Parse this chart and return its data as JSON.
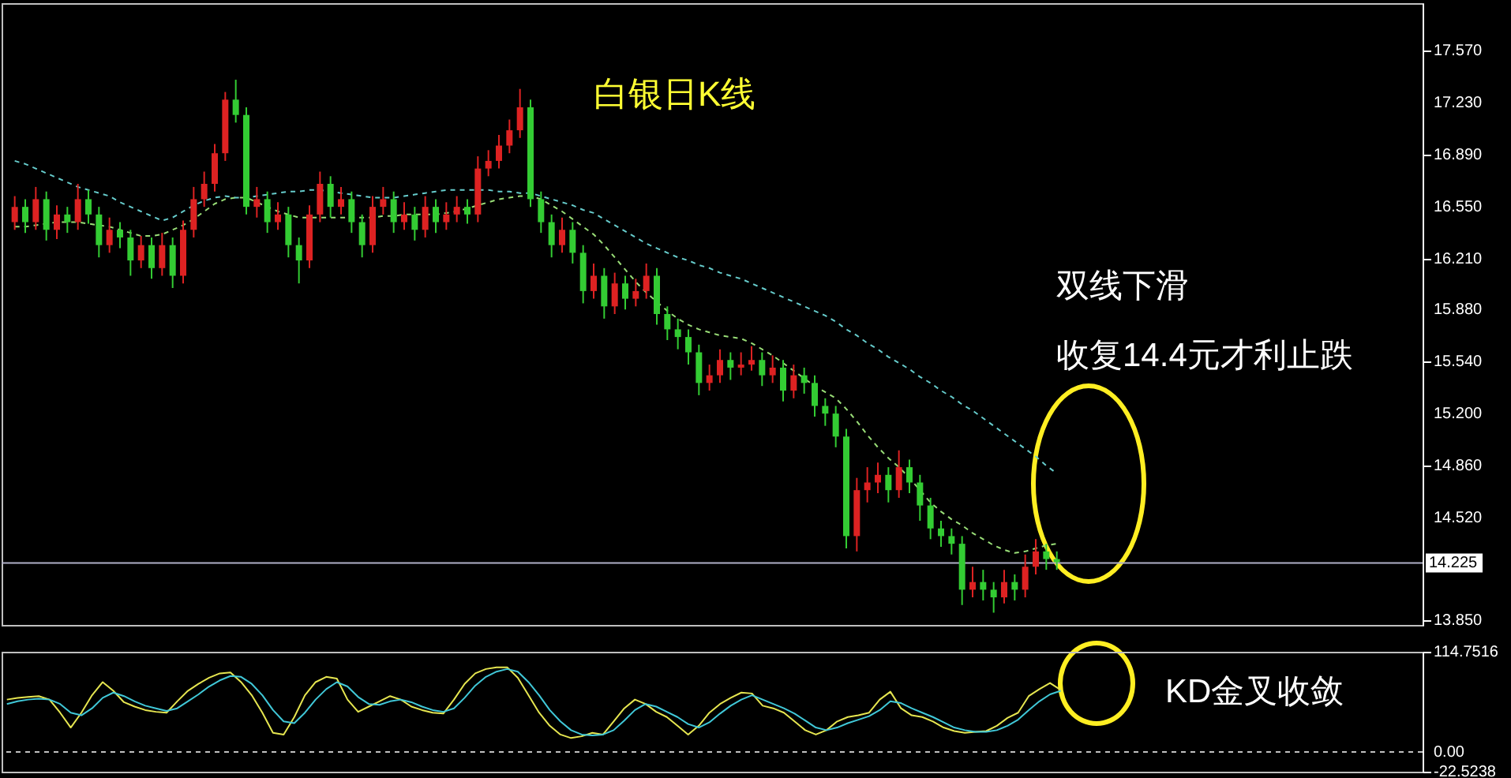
{
  "chart_data": [
    {
      "type": "candlestick",
      "title": "白银日K线",
      "annotations": [
        "双线下滑",
        "收复14.4元才利止跌"
      ],
      "categories": [
        null,
        null,
        null,
        null,
        null,
        null,
        null,
        null,
        null,
        null,
        null,
        null,
        null,
        null,
        null,
        null,
        null,
        null,
        null,
        null,
        null,
        null,
        null,
        null,
        null,
        null,
        null,
        null,
        null,
        null,
        null,
        null,
        null,
        null,
        null,
        null,
        null,
        null,
        null,
        null,
        null,
        null,
        null,
        null,
        null,
        null,
        null,
        null,
        null,
        null,
        null,
        null,
        null,
        null,
        null,
        null,
        null,
        null,
        null,
        null,
        null,
        null,
        null,
        null,
        null,
        null,
        null,
        null,
        null,
        null,
        null,
        null,
        null,
        null,
        null,
        null,
        null,
        null,
        null,
        null,
        null,
        null,
        null,
        null,
        null,
        null,
        null,
        null,
        null,
        null,
        null,
        null,
        null,
        null,
        null,
        null,
        null,
        null,
        null,
        null
      ],
      "ohlc": [
        [
          16.45,
          16.62,
          16.4,
          16.55
        ],
        [
          16.55,
          16.6,
          16.38,
          16.45
        ],
        [
          16.45,
          16.68,
          16.4,
          16.6
        ],
        [
          16.6,
          16.65,
          16.33,
          16.4
        ],
        [
          16.4,
          16.56,
          16.34,
          16.5
        ],
        [
          16.5,
          16.55,
          16.38,
          16.45
        ],
        [
          16.45,
          16.7,
          16.4,
          16.6
        ],
        [
          16.6,
          16.66,
          16.44,
          16.5
        ],
        [
          16.5,
          16.55,
          16.22,
          16.3
        ],
        [
          16.3,
          16.48,
          16.25,
          16.4
        ],
        [
          16.4,
          16.45,
          16.28,
          16.35
        ],
        [
          16.35,
          16.4,
          16.1,
          16.2
        ],
        [
          16.2,
          16.36,
          16.15,
          16.3
        ],
        [
          16.3,
          16.35,
          16.08,
          16.15
        ],
        [
          16.15,
          16.38,
          16.1,
          16.3
        ],
        [
          16.3,
          16.35,
          16.02,
          16.1
        ],
        [
          16.1,
          16.46,
          16.05,
          16.4
        ],
        [
          16.4,
          16.68,
          16.35,
          16.6
        ],
        [
          16.6,
          16.78,
          16.55,
          16.7
        ],
        [
          16.7,
          16.96,
          16.65,
          16.9
        ],
        [
          16.9,
          17.3,
          16.85,
          17.25
        ],
        [
          17.25,
          17.38,
          17.1,
          17.15
        ],
        [
          17.15,
          17.2,
          16.5,
          16.55
        ],
        [
          16.55,
          16.68,
          16.48,
          16.6
        ],
        [
          16.6,
          16.65,
          16.38,
          16.45
        ],
        [
          16.45,
          16.58,
          16.4,
          16.5
        ],
        [
          16.5,
          16.55,
          16.22,
          16.3
        ],
        [
          16.3,
          16.35,
          16.05,
          16.2
        ],
        [
          16.2,
          16.56,
          16.15,
          16.5
        ],
        [
          16.5,
          16.78,
          16.45,
          16.7
        ],
        [
          16.7,
          16.75,
          16.48,
          16.55
        ],
        [
          16.55,
          16.68,
          16.5,
          16.6
        ],
        [
          16.6,
          16.65,
          16.38,
          16.45
        ],
        [
          16.45,
          16.5,
          16.22,
          16.3
        ],
        [
          16.3,
          16.62,
          16.25,
          16.55
        ],
        [
          16.55,
          16.68,
          16.5,
          16.6
        ],
        [
          16.6,
          16.65,
          16.38,
          16.45
        ],
        [
          16.45,
          16.58,
          16.4,
          16.5
        ],
        [
          16.5,
          16.55,
          16.33,
          16.4
        ],
        [
          16.4,
          16.62,
          16.35,
          16.55
        ],
        [
          16.55,
          16.6,
          16.38,
          16.45
        ],
        [
          16.45,
          16.58,
          16.4,
          16.5
        ],
        [
          16.5,
          16.62,
          16.45,
          16.55
        ],
        [
          16.55,
          16.6,
          16.44,
          16.5
        ],
        [
          16.5,
          16.88,
          16.45,
          16.8
        ],
        [
          16.8,
          16.92,
          16.75,
          16.85
        ],
        [
          16.85,
          17.02,
          16.8,
          16.95
        ],
        [
          16.95,
          17.12,
          16.9,
          17.05
        ],
        [
          17.05,
          17.32,
          17.0,
          17.2
        ],
        [
          17.2,
          17.25,
          16.55,
          16.6
        ],
        [
          16.6,
          16.65,
          16.38,
          16.45
        ],
        [
          16.45,
          16.5,
          16.22,
          16.3
        ],
        [
          16.3,
          16.48,
          16.25,
          16.4
        ],
        [
          16.4,
          16.45,
          16.18,
          16.25
        ],
        [
          16.25,
          16.3,
          15.92,
          16.0
        ],
        [
          16.0,
          16.18,
          15.95,
          16.1
        ],
        [
          16.1,
          16.15,
          15.82,
          15.9
        ],
        [
          15.9,
          16.12,
          15.85,
          16.05
        ],
        [
          16.05,
          16.1,
          15.88,
          15.95
        ],
        [
          15.95,
          16.08,
          15.9,
          16.0
        ],
        [
          16.0,
          16.18,
          15.95,
          16.1
        ],
        [
          16.1,
          16.15,
          15.78,
          15.85
        ],
        [
          15.85,
          15.9,
          15.68,
          15.75
        ],
        [
          15.75,
          15.82,
          15.62,
          15.7
        ],
        [
          15.7,
          15.75,
          15.52,
          15.6
        ],
        [
          15.6,
          15.65,
          15.32,
          15.4
        ],
        [
          15.4,
          15.52,
          15.35,
          15.45
        ],
        [
          15.45,
          15.62,
          15.4,
          15.55
        ],
        [
          15.55,
          15.6,
          15.42,
          15.5
        ],
        [
          15.5,
          15.6,
          15.45,
          15.52
        ],
        [
          15.52,
          15.64,
          15.48,
          15.55
        ],
        [
          15.55,
          15.6,
          15.38,
          15.45
        ],
        [
          15.45,
          15.58,
          15.4,
          15.5
        ],
        [
          15.5,
          15.55,
          15.28,
          15.35
        ],
        [
          15.35,
          15.52,
          15.3,
          15.45
        ],
        [
          15.45,
          15.5,
          15.33,
          15.4
        ],
        [
          15.4,
          15.45,
          15.18,
          15.25
        ],
        [
          15.25,
          15.3,
          15.12,
          15.2
        ],
        [
          15.2,
          15.25,
          14.98,
          15.05
        ],
        [
          15.05,
          15.1,
          14.32,
          14.4
        ],
        [
          14.4,
          14.78,
          14.3,
          14.7
        ],
        [
          14.7,
          14.85,
          14.62,
          14.75
        ],
        [
          14.75,
          14.88,
          14.68,
          14.8
        ],
        [
          14.8,
          14.85,
          14.62,
          14.7
        ],
        [
          14.7,
          14.96,
          14.65,
          14.85
        ],
        [
          14.85,
          14.9,
          14.68,
          14.75
        ],
        [
          14.75,
          14.8,
          14.5,
          14.6
        ],
        [
          14.6,
          14.65,
          14.38,
          14.45
        ],
        [
          14.45,
          14.5,
          14.33,
          14.4
        ],
        [
          14.4,
          14.45,
          14.28,
          14.35
        ],
        [
          14.35,
          14.4,
          13.95,
          14.05
        ],
        [
          14.05,
          14.2,
          14.0,
          14.1
        ],
        [
          14.1,
          14.18,
          13.98,
          14.05
        ],
        [
          14.05,
          14.1,
          13.9,
          14.0
        ],
        [
          14.0,
          14.18,
          13.96,
          14.1
        ],
        [
          14.1,
          14.15,
          13.98,
          14.05
        ],
        [
          14.05,
          14.28,
          14.0,
          14.2
        ],
        [
          14.2,
          14.38,
          14.15,
          14.3
        ],
        [
          14.3,
          14.35,
          14.18,
          14.25
        ],
        [
          14.25,
          14.3,
          14.18,
          14.23
        ]
      ],
      "colors": [
        "#dd2222",
        "#33cc33",
        "#dd2222",
        "#33cc33",
        "#dd2222",
        "#33cc33",
        "#dd2222",
        "#33cc33",
        "#33cc33",
        "#dd2222",
        "#33cc33",
        "#33cc33",
        "#dd2222",
        "#33cc33",
        "#dd2222",
        "#33cc33",
        "#dd2222",
        "#dd2222",
        "#dd2222",
        "#dd2222",
        "#dd2222",
        "#33cc33",
        "#33cc33",
        "#dd2222",
        "#33cc33",
        "#dd2222",
        "#33cc33",
        "#33cc33",
        "#dd2222",
        "#dd2222",
        "#33cc33",
        "#dd2222",
        "#33cc33",
        "#33cc33",
        "#dd2222",
        "#dd2222",
        "#33cc33",
        "#dd2222",
        "#33cc33",
        "#dd2222",
        "#33cc33",
        "#dd2222",
        "#dd2222",
        "#33cc33",
        "#dd2222",
        "#dd2222",
        "#dd2222",
        "#dd2222",
        "#dd2222",
        "#33cc33",
        "#33cc33",
        "#33cc33",
        "#dd2222",
        "#33cc33",
        "#33cc33",
        "#dd2222",
        "#33cc33",
        "#dd2222",
        "#33cc33",
        "#dd2222",
        "#dd2222",
        "#33cc33",
        "#33cc33",
        "#33cc33",
        "#33cc33",
        "#33cc33",
        "#dd2222",
        "#dd2222",
        "#33cc33",
        "#dd2222",
        "#dd2222",
        "#33cc33",
        "#dd2222",
        "#33cc33",
        "#dd2222",
        "#33cc33",
        "#33cc33",
        "#33cc33",
        "#33cc33",
        "#33cc33",
        "#dd2222",
        "#dd2222",
        "#dd2222",
        "#33cc33",
        "#dd2222",
        "#33cc33",
        "#33cc33",
        "#33cc33",
        "#33cc33",
        "#33cc33",
        "#33cc33",
        "#dd2222",
        "#33cc33",
        "#33cc33",
        "#dd2222",
        "#33cc33",
        "#dd2222",
        "#dd2222",
        "#33cc33",
        "#33cc33"
      ],
      "series": [
        {
          "type": "line",
          "line_style": "dashed",
          "color": "#99dd77",
          "values": [
            16.42,
            16.42,
            16.43,
            16.44,
            16.45,
            16.45,
            16.45,
            16.44,
            16.43,
            16.42,
            16.4,
            16.38,
            16.36,
            16.36,
            16.37,
            16.4,
            16.43,
            16.47,
            16.52,
            16.57,
            16.6,
            16.61,
            16.61,
            16.58,
            16.55,
            16.52,
            16.5,
            16.48,
            16.48,
            16.48,
            16.48,
            16.48,
            16.48,
            16.48,
            16.48,
            16.49,
            16.49,
            16.5,
            16.5,
            16.5,
            16.5,
            16.51,
            16.52,
            16.54,
            16.56,
            16.58,
            16.6,
            16.61,
            16.62,
            16.62,
            16.6,
            16.56,
            16.52,
            16.47,
            16.42,
            16.37,
            16.3,
            16.22,
            16.14,
            16.06,
            15.99,
            15.93,
            15.87,
            15.82,
            15.78,
            15.75,
            15.73,
            15.71,
            15.7,
            15.69,
            15.66,
            15.62,
            15.58,
            15.53,
            15.48,
            15.43,
            15.38,
            15.34,
            15.3,
            15.23,
            15.15,
            15.06,
            14.98,
            14.91,
            14.85,
            14.78,
            14.7,
            14.62,
            14.56,
            14.51,
            14.47,
            14.42,
            14.38,
            14.34,
            14.31,
            14.29,
            14.3,
            14.32,
            14.34,
            14.35
          ]
        },
        {
          "type": "line",
          "line_style": "dashed",
          "color": "#66cccc",
          "values": [
            16.85,
            16.83,
            16.8,
            16.77,
            16.74,
            16.71,
            16.68,
            16.66,
            16.64,
            16.62,
            16.58,
            16.55,
            16.52,
            16.49,
            16.46,
            16.48,
            16.52,
            16.56,
            16.59,
            16.61,
            16.62,
            16.61,
            16.61,
            16.62,
            16.63,
            16.64,
            16.65,
            16.65,
            16.66,
            16.66,
            16.65,
            16.64,
            16.63,
            16.62,
            16.61,
            16.61,
            16.61,
            16.62,
            16.63,
            16.64,
            16.65,
            16.66,
            16.66,
            16.66,
            16.66,
            16.66,
            16.65,
            16.65,
            16.64,
            16.64,
            16.62,
            16.6,
            16.58,
            16.56,
            16.53,
            16.51,
            16.47,
            16.43,
            16.39,
            16.35,
            16.31,
            16.28,
            16.25,
            16.22,
            16.2,
            16.17,
            16.15,
            16.12,
            16.1,
            16.08,
            16.05,
            16.02,
            15.99,
            15.96,
            15.93,
            15.9,
            15.87,
            15.84,
            15.8,
            15.75,
            15.71,
            15.66,
            15.62,
            15.57,
            15.53,
            15.49,
            15.44,
            15.4,
            15.35,
            15.31,
            15.26,
            15.22,
            15.17,
            15.12,
            15.07,
            15.02,
            14.97,
            14.92,
            14.86,
            14.81
          ]
        }
      ],
      "ylim": [
        13.82,
        17.88
      ],
      "yticks": [
        {
          "value": 17.57,
          "label": "17.570"
        },
        {
          "value": 17.23,
          "label": "17.230"
        },
        {
          "value": 16.89,
          "label": "16.890"
        },
        {
          "value": 16.55,
          "label": "16.550"
        },
        {
          "value": 16.21,
          "label": "16.210"
        },
        {
          "value": 15.88,
          "label": "15.880"
        },
        {
          "value": 15.54,
          "label": "15.540"
        },
        {
          "value": 15.2,
          "label": "15.200"
        },
        {
          "value": 14.86,
          "label": "14.860"
        },
        {
          "value": 14.52,
          "label": "14.520"
        },
        {
          "value": 13.85,
          "label": "13.850"
        }
      ],
      "ref_lines": [
        {
          "axis": "y",
          "value": 14.225,
          "label": "14.225",
          "color": "#b0b0c8"
        }
      ],
      "tick_labels": "y"
    },
    {
      "type": "line",
      "annotations": [
        "KD金叉收敛"
      ],
      "categories": [
        null,
        null,
        null,
        null,
        null,
        null,
        null,
        null,
        null,
        null,
        null,
        null,
        null,
        null,
        null,
        null,
        null,
        null,
        null,
        null,
        null,
        null,
        null,
        null,
        null,
        null,
        null,
        null,
        null,
        null,
        null,
        null,
        null,
        null,
        null,
        null,
        null,
        null,
        null,
        null,
        null,
        null,
        null,
        null,
        null,
        null,
        null,
        null,
        null,
        null,
        null,
        null,
        null,
        null,
        null,
        null,
        null,
        null,
        null,
        null,
        null,
        null,
        null,
        null,
        null,
        null,
        null,
        null,
        null,
        null,
        null,
        null,
        null,
        null,
        null,
        null,
        null,
        null,
        null,
        null,
        null,
        null,
        null,
        null,
        null,
        null,
        null,
        null,
        null,
        null,
        null,
        null,
        null,
        null,
        null,
        null,
        null,
        null,
        null,
        null
      ],
      "series": [
        {
          "color": "#e6e650",
          "values": [
            60,
            62,
            63,
            64,
            60,
            45,
            28,
            45,
            65,
            80,
            70,
            57,
            52,
            48,
            46,
            45,
            58,
            70,
            78,
            85,
            90,
            91,
            80,
            65,
            45,
            22,
            20,
            40,
            65,
            80,
            86,
            84,
            60,
            46,
            52,
            58,
            64,
            60,
            52,
            48,
            45,
            44,
            60,
            78,
            90,
            95,
            97,
            97,
            85,
            65,
            45,
            30,
            20,
            16,
            18,
            22,
            20,
            35,
            50,
            60,
            55,
            46,
            40,
            30,
            20,
            30,
            45,
            55,
            62,
            68,
            67,
            53,
            50,
            45,
            35,
            25,
            20,
            25,
            35,
            40,
            42,
            45,
            60,
            69,
            50,
            42,
            40,
            35,
            28,
            24,
            22,
            23,
            24,
            30,
            39,
            45,
            64,
            72,
            79,
            71
          ]
        },
        {
          "color": "#40c8d8",
          "values": [
            55,
            58,
            60,
            61,
            60,
            55,
            45,
            42,
            50,
            62,
            68,
            64,
            58,
            53,
            50,
            47,
            50,
            58,
            66,
            75,
            82,
            87,
            86,
            78,
            65,
            48,
            35,
            33,
            45,
            60,
            72,
            80,
            75,
            63,
            55,
            54,
            58,
            60,
            57,
            52,
            48,
            46,
            50,
            62,
            76,
            86,
            92,
            95,
            92,
            80,
            65,
            48,
            35,
            25,
            20,
            19,
            20,
            25,
            36,
            48,
            55,
            52,
            46,
            40,
            32,
            28,
            34,
            44,
            53,
            60,
            65,
            60,
            55,
            50,
            44,
            36,
            28,
            25,
            28,
            33,
            37,
            41,
            48,
            58,
            56,
            50,
            45,
            40,
            34,
            28,
            25,
            23,
            23,
            25,
            30,
            37,
            48,
            58,
            66,
            70
          ]
        }
      ],
      "ylim": [
        -22.5238,
        114.7516
      ],
      "yticks": [
        114.7516,
        {
          "value": 0,
          "label": "0.00"
        },
        -22.5238
      ],
      "ref_lines": [
        {
          "axis": "y",
          "value": 0,
          "color": "#c0c0c0",
          "line_style": "dashed"
        }
      ],
      "tick_labels": "y"
    }
  ]
}
